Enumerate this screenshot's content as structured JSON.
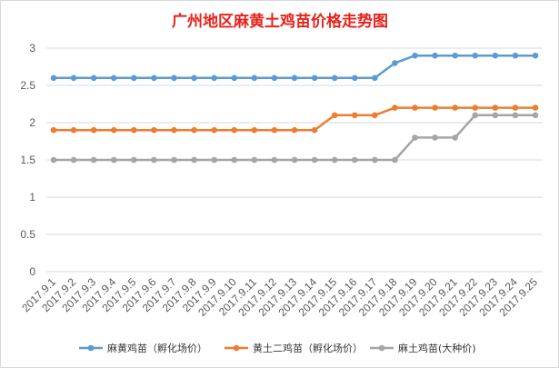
{
  "chart_data": {
    "type": "line",
    "title": "广州地区麻黄土鸡苗价格走势图",
    "title_color": "#e8221b",
    "xlabel": "",
    "ylabel": "",
    "ylim": [
      0,
      3
    ],
    "yticks": [
      "0",
      "0.5",
      "1",
      "1.5",
      "2",
      "2.5",
      "3"
    ],
    "grid": true,
    "legend_position": "bottom",
    "x": [
      "2017.9.1",
      "2017.9.2",
      "2017.9.3",
      "2017.9.4",
      "2017.9.5",
      "2017.9.6",
      "2017.9.7",
      "2017.9.8",
      "2017.9.9",
      "2017.9.10",
      "2017.9.11",
      "2017.9.12",
      "2017.9.13",
      "2017.9.14",
      "2017.9.15",
      "2017.9.16",
      "2017.9.17",
      "2017.9.18",
      "2017.9.19",
      "2017.9.20",
      "2017.9.21",
      "2017.9.22",
      "2017.9.23",
      "2017.9.24",
      "2017.9.25"
    ],
    "series": [
      {
        "name": "麻黄鸡苗（孵化场价）",
        "color": "#5b9bd5",
        "values": [
          2.6,
          2.6,
          2.6,
          2.6,
          2.6,
          2.6,
          2.6,
          2.6,
          2.6,
          2.6,
          2.6,
          2.6,
          2.6,
          2.6,
          2.6,
          2.6,
          2.6,
          2.8,
          2.9,
          2.9,
          2.9,
          2.9,
          2.9,
          2.9,
          2.9
        ]
      },
      {
        "name": "黄土二鸡苗（孵化场价）",
        "color": "#ed7d31",
        "values": [
          1.9,
          1.9,
          1.9,
          1.9,
          1.9,
          1.9,
          1.9,
          1.9,
          1.9,
          1.9,
          1.9,
          1.9,
          1.9,
          1.9,
          2.1,
          2.1,
          2.1,
          2.2,
          2.2,
          2.2,
          2.2,
          2.2,
          2.2,
          2.2,
          2.2
        ]
      },
      {
        "name": "麻土鸡苗(大种价)",
        "color": "#a5a5a5",
        "values": [
          1.5,
          1.5,
          1.5,
          1.5,
          1.5,
          1.5,
          1.5,
          1.5,
          1.5,
          1.5,
          1.5,
          1.5,
          1.5,
          1.5,
          1.5,
          1.5,
          1.5,
          1.5,
          1.8,
          1.8,
          1.8,
          2.1,
          2.1,
          2.1,
          2.1
        ]
      }
    ]
  }
}
